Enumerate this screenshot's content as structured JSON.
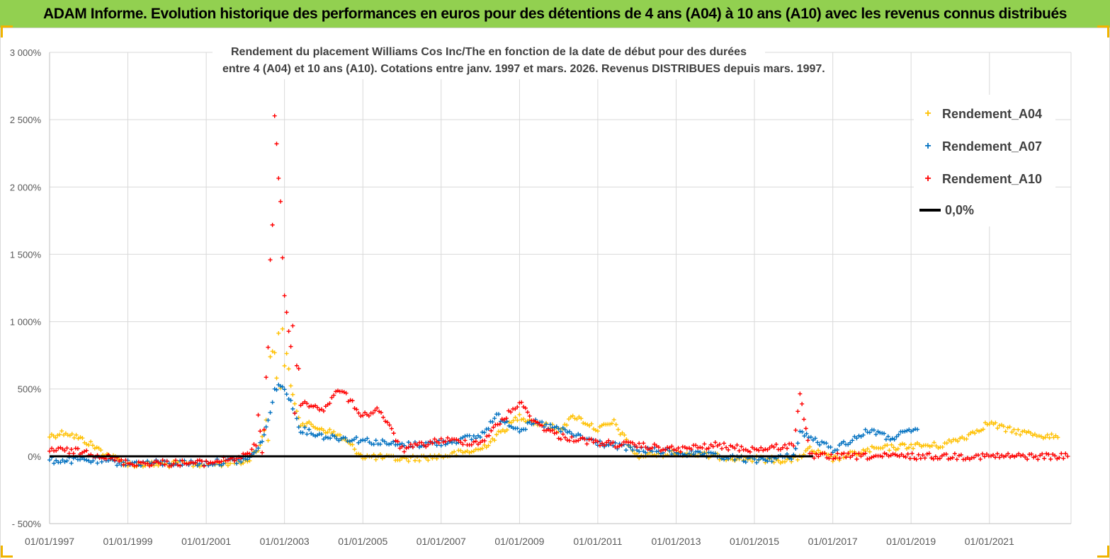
{
  "header": {
    "title": "ADAM Informe. Evolution historique des performances en euros pour des détentions de 4 ans (A04) à 10 ans (A10) avec les revenus connus distribués"
  },
  "colors": {
    "banner": "#92d050",
    "A04": "#ffc000",
    "A07": "#0070c0",
    "A10": "#ff0000",
    "zero": "#000000",
    "grid": "#d9d9d9",
    "axis_text": "#595959"
  },
  "chart_data": {
    "type": "scatter",
    "title_line1": "Rendement du placement Williams Cos Inc/The  en fonction de la date de début pour des durées",
    "title_line2": "entre 4 (A04) et 10 ans (A10). Cotations entre janv. 1997 et mars. 2026. Revenus DISTRIBUES depuis mars. 1997.",
    "xlabel": "",
    "ylabel": "",
    "x_range": [
      "01/01/1997",
      "01/02/2023"
    ],
    "ylim": [
      -500,
      3000
    ],
    "y_unit": "%",
    "y_ticks": [
      -500,
      0,
      500,
      1000,
      1500,
      2000,
      2500,
      3000
    ],
    "y_tick_labels": [
      "- 500%",
      "0%",
      "500%",
      "1 000%",
      "1 500%",
      "2 000%",
      "2 500%",
      "3 000%"
    ],
    "x_tick_labels": [
      "01/01/1997",
      "01/01/1999",
      "01/01/2001",
      "01/01/2003",
      "01/01/2005",
      "01/01/2007",
      "01/01/2009",
      "01/01/2011",
      "01/01/2013",
      "01/01/2015",
      "01/01/2017",
      "01/01/2019",
      "01/01/2021"
    ],
    "grid": true,
    "legend_position": "top-right",
    "series": [
      {
        "name": "Rendement_A04",
        "marker": "+",
        "color": "#ffc000",
        "points": [
          [
            "01/01/1997",
            150
          ],
          [
            "01/06/1997",
            180
          ],
          [
            "01/01/1998",
            100
          ],
          [
            "01/06/1998",
            20
          ],
          [
            "01/01/1999",
            -60
          ],
          [
            "01/01/2000",
            -60
          ],
          [
            "01/01/2001",
            -60
          ],
          [
            "01/01/2002",
            -40
          ],
          [
            "01/05/2002",
            50
          ],
          [
            "01/08/2002",
            300
          ],
          [
            "01/10/2002",
            750
          ],
          [
            "01/01/2003",
            800
          ],
          [
            "01/03/2003",
            500
          ],
          [
            "01/06/2003",
            250
          ],
          [
            "01/01/2004",
            200
          ],
          [
            "01/06/2004",
            150
          ],
          [
            "01/01/2005",
            0
          ],
          [
            "01/01/2006",
            -20
          ],
          [
            "01/01/2007",
            0
          ],
          [
            "01/01/2008",
            50
          ],
          [
            "01/06/2008",
            150
          ],
          [
            "01/01/2009",
            300
          ],
          [
            "01/06/2009",
            250
          ],
          [
            "01/01/2010",
            200
          ],
          [
            "01/06/2010",
            300
          ],
          [
            "01/01/2011",
            200
          ],
          [
            "01/06/2011",
            250
          ],
          [
            "01/01/2012",
            0
          ],
          [
            "01/01/2013",
            30
          ],
          [
            "01/01/2014",
            0
          ],
          [
            "01/01/2015",
            -20
          ],
          [
            "01/01/2016",
            -30
          ],
          [
            "01/06/2016",
            50
          ],
          [
            "01/01/2017",
            -20
          ],
          [
            "01/01/2018",
            50
          ],
          [
            "01/01/2019",
            80
          ],
          [
            "01/10/2019",
            80
          ],
          [
            "01/06/2020",
            150
          ],
          [
            "01/01/2021",
            250
          ],
          [
            "01/06/2021",
            200
          ],
          [
            "01/01/2022",
            170
          ],
          [
            "01/10/2022",
            140
          ]
        ]
      },
      {
        "name": "Rendement_A07",
        "marker": "+",
        "color": "#0070c0",
        "points": [
          [
            "01/01/1997",
            -30
          ],
          [
            "01/01/1998",
            -30
          ],
          [
            "01/01/1999",
            -50
          ],
          [
            "01/01/2000",
            -50
          ],
          [
            "01/01/2001",
            -50
          ],
          [
            "01/01/2002",
            -30
          ],
          [
            "01/05/2002",
            50
          ],
          [
            "01/08/2002",
            250
          ],
          [
            "01/10/2002",
            500
          ],
          [
            "01/01/2003",
            520
          ],
          [
            "01/03/2003",
            400
          ],
          [
            "01/06/2003",
            200
          ],
          [
            "01/01/2004",
            150
          ],
          [
            "01/01/2005",
            120
          ],
          [
            "01/01/2006",
            80
          ],
          [
            "01/01/2007",
            100
          ],
          [
            "01/01/2008",
            150
          ],
          [
            "01/06/2008",
            300
          ],
          [
            "01/01/2009",
            200
          ],
          [
            "01/06/2009",
            250
          ],
          [
            "01/01/2010",
            200
          ],
          [
            "01/01/2011",
            100
          ],
          [
            "01/01/2012",
            50
          ],
          [
            "01/01/2013",
            30
          ],
          [
            "01/01/2014",
            0
          ],
          [
            "01/01/2015",
            -30
          ],
          [
            "01/01/2016",
            0
          ],
          [
            "01/03/2016",
            180
          ],
          [
            "01/01/2017",
            50
          ],
          [
            "01/01/2018",
            200
          ],
          [
            "01/06/2018",
            130
          ],
          [
            "01/03/2019",
            200
          ]
        ]
      },
      {
        "name": "Rendement_A10",
        "marker": "+",
        "color": "#ff0000",
        "points": [
          [
            "01/01/1997",
            50
          ],
          [
            "01/01/1998",
            30
          ],
          [
            "01/01/1999",
            -50
          ],
          [
            "01/01/2000",
            -50
          ],
          [
            "01/01/2001",
            -50
          ],
          [
            "01/01/2002",
            0
          ],
          [
            "01/05/2002",
            100
          ],
          [
            "01/08/2002",
            700
          ],
          [
            "01/10/2002",
            2600
          ],
          [
            "01/01/2003",
            1300
          ],
          [
            "01/03/2003",
            800
          ],
          [
            "01/06/2003",
            400
          ],
          [
            "01/01/2004",
            350
          ],
          [
            "01/06/2004",
            500
          ],
          [
            "01/01/2005",
            300
          ],
          [
            "01/06/2005",
            350
          ],
          [
            "01/01/2006",
            50
          ],
          [
            "01/01/2007",
            120
          ],
          [
            "01/01/2008",
            100
          ],
          [
            "01/01/2009",
            400
          ],
          [
            "01/06/2009",
            250
          ],
          [
            "01/01/2010",
            150
          ],
          [
            "01/01/2011",
            100
          ],
          [
            "01/01/2012",
            80
          ],
          [
            "01/01/2013",
            50
          ],
          [
            "01/01/2014",
            80
          ],
          [
            "01/01/2015",
            50
          ],
          [
            "01/01/2016",
            80
          ],
          [
            "01/03/2016",
            480
          ],
          [
            "01/06/2016",
            0
          ],
          [
            "01/01/2023",
            0
          ]
        ]
      },
      {
        "name": "0,0%",
        "marker": "line",
        "color": "#000000",
        "points": [
          [
            "01/01/1997",
            0
          ],
          [
            "01/07/2016",
            0
          ]
        ]
      }
    ]
  }
}
